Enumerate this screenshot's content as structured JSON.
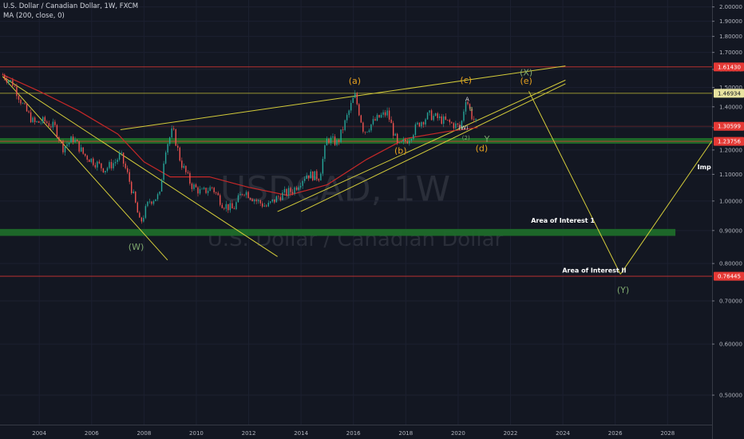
{
  "header": {
    "title": "U.S. Dollar / Canadian Dollar, 1W, FXCM",
    "indicator": "MA (200, close, 0)"
  },
  "watermark": {
    "symbol": "USDCAD, 1W",
    "name": "U.S. Dollar / Canadian Dollar"
  },
  "colors": {
    "background": "#131722",
    "up": "#26a69a",
    "down": "#ef5350",
    "ma": "#c62828",
    "trendline": "#d4cc3a",
    "hline_red": "#e53935",
    "hline_yellow": "#d4cc3a",
    "zone": "#1e6b2a",
    "wave_orange": "#e8a21e",
    "wave_green": "#7fa86e"
  },
  "chart_data": {
    "type": "candlestick",
    "timeframe": "1W",
    "symbol": "USDCAD",
    "xlim": [
      2002.5,
      2029.7
    ],
    "ylim": [
      0.45,
      2.05
    ],
    "y_scale": "log",
    "x_ticks": [
      "2004",
      "2006",
      "2008",
      "2010",
      "2012",
      "2014",
      "2016",
      "2018",
      "2020",
      "2022",
      "2024",
      "2026",
      "2028"
    ],
    "y_ticks": [
      "2.00000",
      "1.90000",
      "1.80000",
      "1.70000",
      "1.60000",
      "1.50000",
      "1.40000",
      "1.30000",
      "1.20000",
      "1.10000",
      "1.00000",
      "0.90000",
      "0.80000",
      "0.70000",
      "0.60000",
      "0.50000"
    ],
    "price_path": [
      [
        2002.6,
        1.57
      ],
      [
        2003.0,
        1.52
      ],
      [
        2003.4,
        1.4
      ],
      [
        2003.8,
        1.32
      ],
      [
        2004.2,
        1.33
      ],
      [
        2004.6,
        1.3
      ],
      [
        2004.9,
        1.21
      ],
      [
        2005.3,
        1.25
      ],
      [
        2005.7,
        1.18
      ],
      [
        2006.1,
        1.15
      ],
      [
        2006.5,
        1.12
      ],
      [
        2006.9,
        1.15
      ],
      [
        2007.1,
        1.18
      ],
      [
        2007.4,
        1.09
      ],
      [
        2007.7,
        0.98
      ],
      [
        2007.85,
        0.92
      ],
      [
        2008.2,
        1.0
      ],
      [
        2008.6,
        1.02
      ],
      [
        2008.8,
        1.2
      ],
      [
        2009.1,
        1.29
      ],
      [
        2009.4,
        1.15
      ],
      [
        2009.8,
        1.06
      ],
      [
        2010.2,
        1.03
      ],
      [
        2010.6,
        1.05
      ],
      [
        2011.0,
        0.99
      ],
      [
        2011.4,
        0.97
      ],
      [
        2011.8,
        1.04
      ],
      [
        2012.3,
        1.0
      ],
      [
        2012.7,
        0.98
      ],
      [
        2013.2,
        1.02
      ],
      [
        2013.7,
        1.04
      ],
      [
        2014.2,
        1.1
      ],
      [
        2014.7,
        1.09
      ],
      [
        2015.0,
        1.25
      ],
      [
        2015.4,
        1.23
      ],
      [
        2015.7,
        1.33
      ],
      [
        2016.05,
        1.46
      ],
      [
        2016.4,
        1.28
      ],
      [
        2016.8,
        1.33
      ],
      [
        2017.0,
        1.35
      ],
      [
        2017.3,
        1.37
      ],
      [
        2017.7,
        1.21
      ],
      [
        2018.1,
        1.25
      ],
      [
        2018.5,
        1.32
      ],
      [
        2018.9,
        1.36
      ],
      [
        2019.3,
        1.34
      ],
      [
        2019.7,
        1.32
      ],
      [
        2020.1,
        1.3
      ],
      [
        2020.3,
        1.45
      ],
      [
        2020.5,
        1.36
      ],
      [
        2020.75,
        1.306
      ]
    ],
    "moving_average": {
      "name": "MA (200, close, 0)",
      "points": [
        [
          2002.6,
          1.57
        ],
        [
          2004.0,
          1.48
        ],
        [
          2005.5,
          1.38
        ],
        [
          2007.0,
          1.27
        ],
        [
          2008.0,
          1.15
        ],
        [
          2009.0,
          1.09
        ],
        [
          2010.5,
          1.09
        ],
        [
          2012.0,
          1.05
        ],
        [
          2013.5,
          1.02
        ],
        [
          2015.0,
          1.06
        ],
        [
          2016.5,
          1.16
        ],
        [
          2018.0,
          1.25
        ],
        [
          2019.5,
          1.28
        ],
        [
          2020.75,
          1.3
        ]
      ]
    },
    "horizontal_lines": [
      {
        "label": "1.61430",
        "value": 1.6143,
        "color": "#e53935"
      },
      {
        "label": "1.46934",
        "value": 1.46934,
        "color": "#d4cc3a"
      },
      {
        "label": "1.30599",
        "value": 1.30599,
        "color": "#e53935"
      },
      {
        "label": "1.23756",
        "value": 1.23756,
        "color": "#e53935"
      },
      {
        "label": "0.76445",
        "value": 0.76445,
        "color": "#e53935"
      }
    ],
    "zones": [
      {
        "from": 2002.5,
        "to": 2029.8,
        "low": 1.227,
        "high": 1.252
      },
      {
        "from": 2002.5,
        "to": 2028.3,
        "low": 0.883,
        "high": 0.905
      }
    ],
    "trendlines": [
      {
        "from": [
          2002.6,
          1.56
        ],
        "to": [
          2008.9,
          0.81
        ]
      },
      {
        "from": [
          2002.6,
          1.56
        ],
        "to": [
          2013.1,
          0.82
        ]
      },
      {
        "from": [
          2007.1,
          1.29
        ],
        "to": [
          2024.1,
          1.62
        ]
      },
      {
        "from": [
          2014.0,
          0.963
        ],
        "to": [
          2024.1,
          1.52
        ]
      },
      {
        "from": [
          2013.1,
          0.963
        ],
        "to": [
          2024.1,
          1.54
        ]
      },
      {
        "from": [
          2022.7,
          1.48
        ],
        "to": [
          2026.2,
          0.77
        ]
      },
      {
        "from": [
          2026.2,
          0.77
        ],
        "to": [
          2029.7,
          1.24
        ]
      }
    ],
    "wave_labels": [
      {
        "text": "(a)",
        "x": 2016.05,
        "y": 1.52,
        "color": "#e8a21e"
      },
      {
        "text": "(b)",
        "x": 2017.8,
        "y": 1.185,
        "color": "#e8a21e"
      },
      {
        "text": "(c)",
        "x": 2020.3,
        "y": 1.525,
        "color": "#e8a21e"
      },
      {
        "text": "(d)",
        "x": 2020.9,
        "y": 1.195,
        "color": "#e8a21e"
      },
      {
        "text": "(X)",
        "x": 2022.6,
        "y": 1.565,
        "color": "#7fa86e"
      },
      {
        "text": "(e)",
        "x": 2022.6,
        "y": 1.52,
        "color": "#e8a21e"
      },
      {
        "text": "(W)",
        "x": 2007.7,
        "y": 0.84,
        "color": "#7fa86e"
      },
      {
        "text": "(Y)",
        "x": 2026.3,
        "y": 0.72,
        "color": "#7fa86e"
      },
      {
        "text": "Y",
        "x": 2021.1,
        "y": 1.235,
        "color": "#7fa86e"
      },
      {
        "text": "(2)",
        "x": 2020.3,
        "y": 1.245,
        "color": "#7fa86e"
      },
      {
        "text": "(W)",
        "x": 2020.2,
        "y": 1.29,
        "color": "#d1d4dc"
      },
      {
        "text": "A",
        "x": 2020.35,
        "y": 1.43,
        "color": "#d1d4dc"
      },
      {
        "text": "B",
        "x": 2020.5,
        "y": 1.38,
        "color": "#7fa86e"
      }
    ],
    "annotations": [
      {
        "text": "Area of Interest 1",
        "x": 2024.0,
        "y": 0.925
      },
      {
        "text": "Area of Interest II",
        "x": 2025.2,
        "y": 0.775
      },
      {
        "text": "Imp",
        "x": 2029.4,
        "y": 1.12
      }
    ]
  }
}
